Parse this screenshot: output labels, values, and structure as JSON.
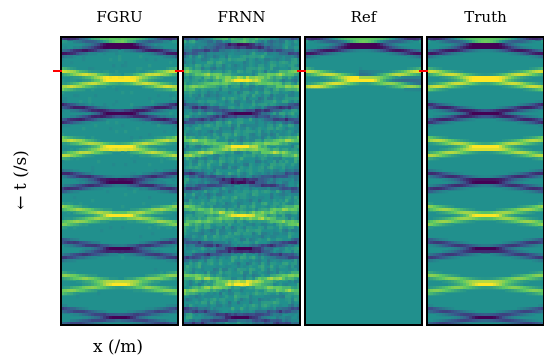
{
  "chart_data": {
    "type": "heatmap",
    "panels": [
      {
        "title": "FGRU",
        "pattern": "crossing-waves",
        "strength": 1.0,
        "noise": 0.15,
        "decay": false
      },
      {
        "title": "FRNN",
        "pattern": "crossing-waves-noisy",
        "strength": 0.65,
        "noise": 0.45,
        "decay": false
      },
      {
        "title": "Ref",
        "pattern": "decaying",
        "strength": 1.0,
        "noise": 0.0,
        "decay": true
      },
      {
        "title": "Truth",
        "pattern": "crossing-waves",
        "strength": 1.0,
        "noise": 0.0,
        "decay": false
      }
    ],
    "xlabel": "x (/m)",
    "ylabel": "← t (/s)",
    "marker_color": "#ff0000",
    "colormap": [
      "#440154",
      "#3b528b",
      "#21908d",
      "#5dc863",
      "#fde725"
    ],
    "background_color": "#21908d"
  }
}
